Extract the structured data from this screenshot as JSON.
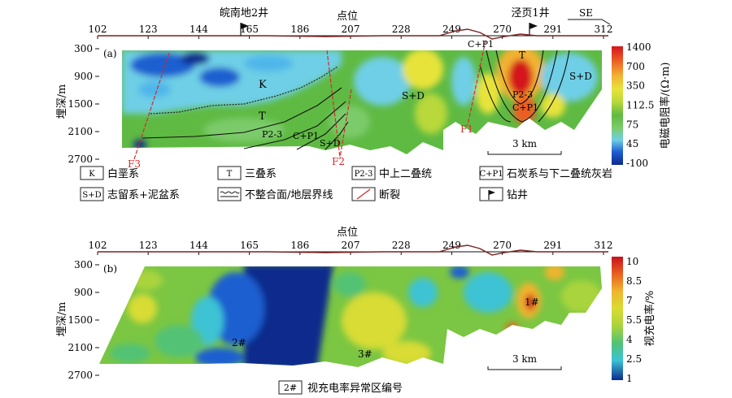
{
  "top_axis": {
    "title": "点位",
    "ticks": [
      "102",
      "123",
      "144",
      "165",
      "186",
      "207",
      "228",
      "249",
      "270",
      "291",
      "312"
    ],
    "direction": "SE"
  },
  "wells": {
    "well_a": "皖南地2井",
    "well_b": "泾页1井"
  },
  "panel_a": {
    "label": "(a)",
    "y_title": "埋深/m",
    "y_ticks": [
      "300",
      "900",
      "1500",
      "2100",
      "2700"
    ],
    "units": [
      "K",
      "T",
      "P2-3",
      "C+P1",
      "S+D"
    ],
    "faults": [
      "F3",
      "F2",
      "F1"
    ],
    "scale_bar": "3 km",
    "colorbar": {
      "title": "电磁电阻率/(Ω·m)",
      "ticks": [
        "1400",
        "700",
        "350",
        "112.5",
        "75",
        "45",
        "-100"
      ]
    }
  },
  "legend": {
    "items": [
      {
        "symbol": "K",
        "text": "白垩系"
      },
      {
        "symbol": "T",
        "text": "三叠系"
      },
      {
        "symbol": "P2-3",
        "text": "中上二叠统"
      },
      {
        "symbol": "C+P1",
        "text": "石炭系与下二叠统灰岩"
      },
      {
        "symbol": "S+D",
        "text": "志留系+泥盆系"
      },
      {
        "symbol": "",
        "text": "不整合面/地层界线"
      },
      {
        "symbol": "",
        "text": "断裂"
      },
      {
        "symbol": "",
        "text": "钻井"
      }
    ]
  },
  "panel_b": {
    "label": "(b)",
    "y_title": "埋深/m",
    "y_ticks": [
      "300",
      "900",
      "1500",
      "2100",
      "2700"
    ],
    "anomalies": [
      "1#",
      "2#",
      "3#"
    ],
    "scale_bar": "3 km",
    "colorbar": {
      "title": "视充电率/%",
      "ticks": [
        "10",
        "8.5",
        "7",
        "5.5",
        "4",
        "2.5",
        "1"
      ]
    },
    "legend_symbol": "2#",
    "legend_text": "视充电率异常区编号"
  },
  "colors": {
    "resistivity_scale": [
      "#0b2a8c",
      "#1f5fd0",
      "#4fb6ea",
      "#6ecfe6",
      "#7ccb6a",
      "#5fba43",
      "#b8d83a",
      "#e7e33a",
      "#f2b233",
      "#ec5d24",
      "#d4161e"
    ],
    "chargeability_scale": [
      "#0b2a8c",
      "#1f5fd0",
      "#3cc3d4",
      "#52c274",
      "#7bc642",
      "#aad43c",
      "#d8dc34",
      "#f0b42f",
      "#e8611f",
      "#c9111b"
    ],
    "topography": "#7a2020",
    "fault": "#d42a2a"
  }
}
